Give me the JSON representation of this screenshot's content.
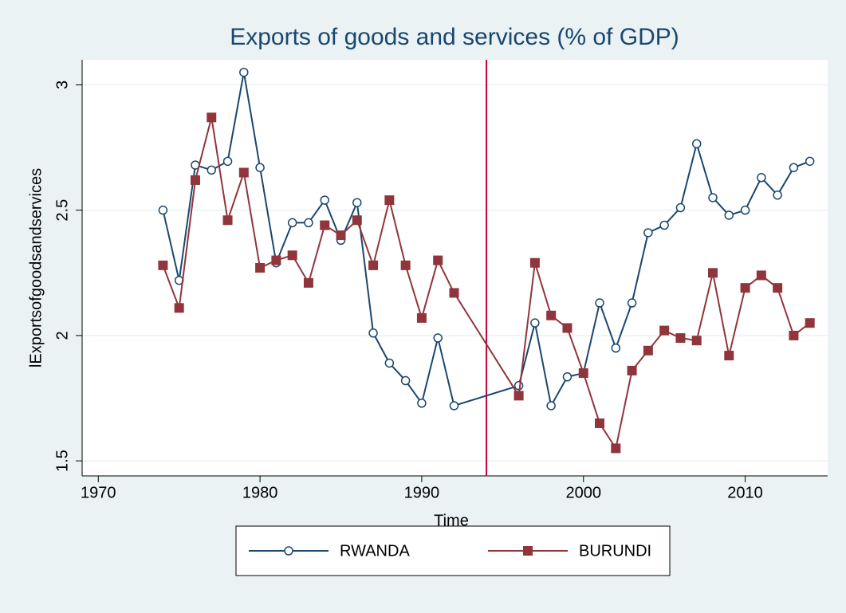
{
  "chart_data": {
    "type": "line",
    "title": "Exports of goods and services (% of GDP)",
    "x_label": "Time",
    "y_label": "lExportsofgoodsandservices",
    "x": [
      1974,
      1975,
      1976,
      1977,
      1978,
      1979,
      1980,
      1981,
      1982,
      1983,
      1984,
      1985,
      1986,
      1987,
      1988,
      1989,
      1990,
      1991,
      1992,
      1996,
      1997,
      1998,
      1999,
      2000,
      2001,
      2002,
      2003,
      2004,
      2005,
      2006,
      2007,
      2008,
      2009,
      2010,
      2011,
      2012,
      2013,
      2014
    ],
    "series": [
      {
        "name": "RWANDA",
        "color": "#1a476f",
        "marker": "circle",
        "values": [
          2.5,
          2.22,
          2.68,
          2.66,
          2.695,
          3.05,
          2.67,
          2.29,
          2.45,
          2.45,
          2.54,
          2.38,
          2.53,
          2.01,
          1.89,
          1.82,
          1.73,
          1.99,
          1.72,
          1.8,
          2.05,
          1.72,
          1.835,
          1.85,
          2.13,
          1.95,
          2.13,
          2.41,
          2.44,
          2.51,
          2.765,
          2.55,
          2.48,
          2.5,
          2.63,
          2.56,
          2.67,
          2.695
        ]
      },
      {
        "name": "BURUNDI",
        "color": "#90353b",
        "marker": "square",
        "values": [
          2.28,
          2.11,
          2.62,
          2.87,
          2.46,
          2.65,
          2.27,
          2.3,
          2.32,
          2.21,
          2.44,
          2.4,
          2.46,
          2.28,
          2.54,
          2.28,
          2.07,
          2.3,
          2.17,
          1.76,
          2.29,
          2.08,
          2.03,
          1.85,
          1.65,
          1.55,
          1.86,
          1.94,
          2.02,
          1.99,
          1.98,
          2.25,
          1.92,
          2.19,
          2.24,
          2.19,
          2.0,
          2.05
        ]
      }
    ],
    "xline": 1994,
    "xline_color": "#c10534",
    "xlim": [
      1969,
      2015.1
    ],
    "xticks": [
      1970,
      1980,
      1990,
      2000,
      2010
    ],
    "ylim": [
      1.44,
      3.1
    ],
    "yticks": [
      1.5,
      2,
      2.5,
      3
    ],
    "grid": true,
    "legend": "bottom"
  }
}
